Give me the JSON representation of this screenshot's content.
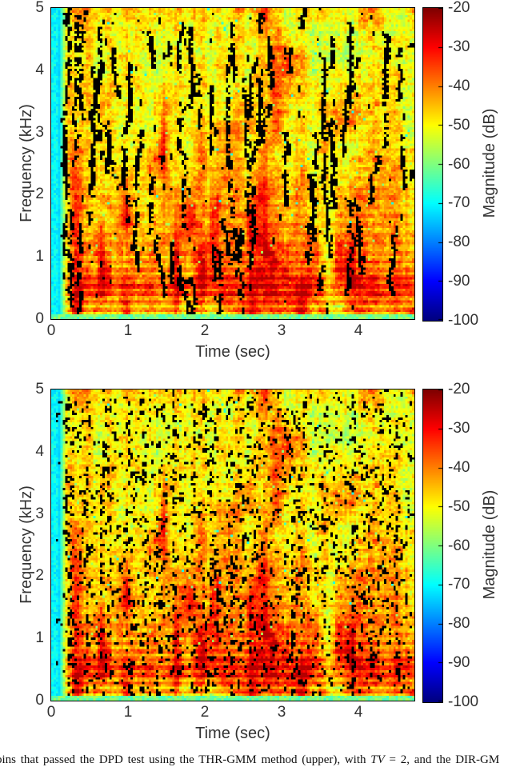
{
  "panels": [
    {
      "id": "upper",
      "ylabel": "Frequency (kHz)",
      "xlabel": "Time (sec)",
      "yticks": [
        "5",
        "4",
        "3",
        "2",
        "1",
        "0"
      ],
      "xticks": [
        "0",
        "1",
        "2",
        "3",
        "4"
      ],
      "colorbar": {
        "label": "Magnitude (dB)",
        "ticks": [
          "-20",
          "-30",
          "-40",
          "-50",
          "-60",
          "-70",
          "-80",
          "-90",
          "-100"
        ]
      }
    },
    {
      "id": "lower",
      "ylabel": "Frequency (kHz)",
      "xlabel": "Time (sec)",
      "yticks": [
        "5",
        "4",
        "3",
        "2",
        "1",
        "0"
      ],
      "xticks": [
        "0",
        "1",
        "2",
        "3",
        "4"
      ],
      "colorbar": {
        "label": "Magnitude (dB)",
        "ticks": [
          "-20",
          "-30",
          "-40",
          "-50",
          "-60",
          "-70",
          "-80",
          "-90",
          "-100"
        ]
      }
    }
  ],
  "caption": {
    "before": "bins that passed the DPD test using the THR-GMM method (upper), with ",
    "var": "TV",
    "after": " = 2, and the DIR-GM"
  },
  "chart_data": [
    {
      "type": "heatmap",
      "subtype": "spectrogram",
      "xlabel": "Time (sec)",
      "ylabel": "Frequency (kHz)",
      "x_range_sec": [
        0,
        4.73
      ],
      "y_range_khz": [
        0,
        5
      ],
      "color_range_db": [
        -100,
        -20
      ],
      "colormap": "jet",
      "colorbar_label": "Magnitude (dB)",
      "colorbar_ticks_db": [
        -20,
        -30,
        -40,
        -50,
        -60,
        -70,
        -80,
        -90,
        -100
      ],
      "description": "Speech spectrogram, mostly -40 to -55 dB (orange/yellow) with strong red bands (-25 to -35 dB) below 1 kHz, cyan silence column before 0.1 s; black regions are time-frequency bins removed by the DPD test (THR-GMM): large ragged vertical streaks.",
      "mask_style": "large-vertical-streaks"
    },
    {
      "type": "heatmap",
      "subtype": "spectrogram",
      "xlabel": "Time (sec)",
      "ylabel": "Frequency (kHz)",
      "x_range_sec": [
        0,
        4.73
      ],
      "y_range_khz": [
        0,
        5
      ],
      "color_range_db": [
        -100,
        -20
      ],
      "colormap": "jet",
      "colorbar_label": "Magnitude (dB)",
      "colorbar_ticks_db": [
        -20,
        -30,
        -40,
        -50,
        -60,
        -70,
        -80,
        -90,
        -100
      ],
      "description": "Same speech spectrogram; black regions removed by the DIR-GMM based test: dense small speckles and thin broken vertical lines.",
      "mask_style": "dense-small-speckles"
    }
  ],
  "generation": {
    "seed_field": 1337,
    "seed_mask_upper": 777,
    "seed_mask_lower": 999
  }
}
